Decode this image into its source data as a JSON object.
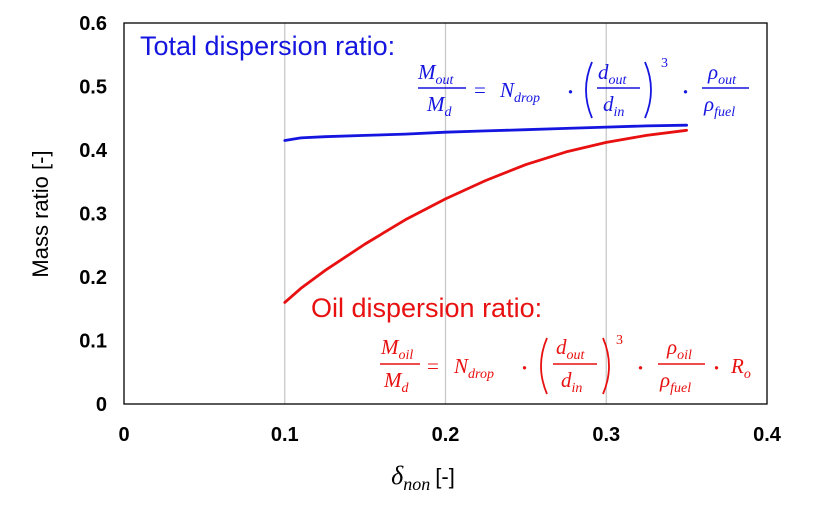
{
  "chart_data": {
    "type": "line",
    "title": "",
    "xlabel_symbol": "δ",
    "xlabel_sub": "non",
    "xlabel_unit": "[-]",
    "ylabel": "Mass ratio [-]",
    "xlim": [
      0,
      0.4
    ],
    "ylim": [
      0,
      0.6
    ],
    "x_ticks": [
      "0",
      "0.1",
      "0.2",
      "0.3",
      "0.4"
    ],
    "y_ticks": [
      "0",
      "0.1",
      "0.2",
      "0.3",
      "0.4",
      "0.5",
      "0.6"
    ],
    "grid": "vertical",
    "series": [
      {
        "name": "Total dispersion ratio:",
        "color": "#1515e0",
        "x": [
          0.1,
          0.11,
          0.125,
          0.15,
          0.175,
          0.2,
          0.225,
          0.25,
          0.275,
          0.3,
          0.325,
          0.35
        ],
        "y": [
          0.415,
          0.419,
          0.421,
          0.423,
          0.425,
          0.428,
          0.43,
          0.432,
          0.434,
          0.436,
          0.438,
          0.439
        ]
      },
      {
        "name": "Oil dispersion ratio:",
        "color": "#e81010",
        "x": [
          0.1,
          0.11,
          0.125,
          0.15,
          0.175,
          0.2,
          0.225,
          0.25,
          0.275,
          0.3,
          0.325,
          0.35
        ],
        "y": [
          0.16,
          0.182,
          0.21,
          0.252,
          0.29,
          0.323,
          0.352,
          0.377,
          0.397,
          0.412,
          0.423,
          0.431
        ]
      }
    ],
    "annotations": [
      {
        "label": "Total dispersion ratio:",
        "color": "#1515e0",
        "equation": {
          "lhs_num": "M",
          "lhs_num_sub": "out",
          "lhs_den": "M",
          "lhs_den_sub": "d",
          "eq": "=",
          "n": "N",
          "n_sub": "drop",
          "dot": "·",
          "frac2_num": "d",
          "frac2_num_sub": "out",
          "frac2_den": "d",
          "frac2_den_sub": "in",
          "exp": "3",
          "frac3_num": "ρ",
          "frac3_num_sub": "out",
          "frac3_den": "ρ",
          "frac3_den_sub": "fuel"
        }
      },
      {
        "label": "Oil dispersion ratio:",
        "color": "#e81010",
        "equation": {
          "lhs_num": "M",
          "lhs_num_sub": "oil",
          "lhs_den": "M",
          "lhs_den_sub": "d",
          "eq": "=",
          "n": "N",
          "n_sub": "drop",
          "dot": "·",
          "frac2_num": "d",
          "frac2_num_sub": "out",
          "frac2_den": "d",
          "frac2_den_sub": "in",
          "exp": "3",
          "frac3_num": "ρ",
          "frac3_num_sub": "oil",
          "frac3_den": "ρ",
          "frac3_den_sub": "fuel",
          "r": "R",
          "r_sub": "o"
        }
      }
    ]
  }
}
